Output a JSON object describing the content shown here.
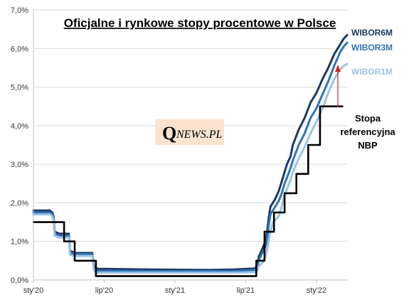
{
  "chart_data": {
    "type": "line",
    "title": "Oficjalne i rynkowe stopy procentowe w Polsce",
    "ylim": [
      0,
      7
    ],
    "y_ticks": [
      "0,0%",
      "1,0%",
      "2,0%",
      "3,0%",
      "4,0%",
      "5,0%",
      "6,0%",
      "7,0%"
    ],
    "y_tick_values": [
      0,
      1,
      2,
      3,
      4,
      5,
      6,
      7
    ],
    "xlim": [
      0,
      26.6
    ],
    "x_ticks": [
      {
        "label": "sty'20",
        "x": 0
      },
      {
        "label": "lip'20",
        "x": 6
      },
      {
        "label": "sty'21",
        "x": 12
      },
      {
        "label": "lip'21",
        "x": 18
      },
      {
        "label": "sty'22",
        "x": 24
      }
    ],
    "grid": "horizontal",
    "annotation": {
      "stopa_lines": [
        "Stopa",
        "referencyjna",
        "NBP"
      ],
      "arrow_color": "#e02020"
    },
    "watermark": {
      "q": "Q",
      "text": "NEWS.PL",
      "bg": "#fbe3d0"
    },
    "series": [
      {
        "name": "WIBOR6M",
        "color": "#203864",
        "x": [
          0,
          1.4,
          1.6,
          1.7,
          1.8,
          2.2,
          2.3,
          3.0,
          3.1,
          3.4,
          3.5,
          3.8,
          4.0,
          5.0,
          5.1,
          5.2,
          5.3,
          5.4,
          5.5,
          10.0,
          15.0,
          17.0,
          18.8,
          19.0,
          19.1,
          19.4,
          19.6,
          19.8,
          19.95,
          20.1,
          20.3,
          20.5,
          20.8,
          21.0,
          21.3,
          21.5,
          21.8,
          22.0,
          22.5,
          23.0,
          23.5,
          24.0,
          24.5,
          25.0,
          25.5,
          26.0,
          26.3,
          26.6
        ],
        "values": [
          1.8,
          1.8,
          1.75,
          1.65,
          1.25,
          1.2,
          1.2,
          1.2,
          0.75,
          0.72,
          0.7,
          0.7,
          0.7,
          0.7,
          0.4,
          0.32,
          0.3,
          0.3,
          0.29,
          0.27,
          0.26,
          0.27,
          0.3,
          0.4,
          0.6,
          0.8,
          0.95,
          1.2,
          1.6,
          1.9,
          2.0,
          2.1,
          2.3,
          2.5,
          2.8,
          3.0,
          3.2,
          3.5,
          3.9,
          4.2,
          4.6,
          4.85,
          5.2,
          5.5,
          5.85,
          6.1,
          6.25,
          6.35
        ]
      },
      {
        "name": "WIBOR3M",
        "color": "#2e75b6",
        "x": [
          0,
          1.4,
          1.6,
          1.7,
          1.8,
          2.2,
          2.3,
          3.0,
          3.1,
          3.4,
          3.5,
          3.8,
          4.0,
          5.0,
          5.1,
          5.2,
          5.3,
          5.4,
          5.5,
          10.0,
          15.0,
          17.0,
          18.8,
          19.0,
          19.1,
          19.4,
          19.6,
          19.8,
          19.95,
          20.1,
          20.3,
          20.5,
          20.8,
          21.0,
          21.3,
          21.5,
          21.8,
          22.0,
          22.5,
          23.0,
          23.5,
          24.0,
          24.5,
          25.0,
          25.5,
          26.0,
          26.3,
          26.6
        ],
        "values": [
          1.75,
          1.75,
          1.7,
          1.6,
          1.2,
          1.15,
          1.15,
          1.15,
          0.7,
          0.68,
          0.67,
          0.67,
          0.67,
          0.67,
          0.35,
          0.28,
          0.26,
          0.25,
          0.24,
          0.23,
          0.23,
          0.23,
          0.26,
          0.35,
          0.5,
          0.7,
          0.8,
          1.0,
          1.4,
          1.7,
          1.8,
          1.9,
          2.05,
          2.2,
          2.5,
          2.65,
          2.9,
          3.1,
          3.5,
          3.8,
          4.2,
          4.45,
          4.8,
          5.15,
          5.55,
          5.9,
          6.05,
          6.15
        ]
      },
      {
        "name": "WIBOR1M",
        "color": "#9dc3e6",
        "x": [
          0,
          1.4,
          1.6,
          1.7,
          1.8,
          2.2,
          2.3,
          3.0,
          3.1,
          3.4,
          3.5,
          3.8,
          4.0,
          5.0,
          5.1,
          5.2,
          5.3,
          5.4,
          5.5,
          10.0,
          15.0,
          17.0,
          18.8,
          19.0,
          19.1,
          19.4,
          19.6,
          19.8,
          19.95,
          20.1,
          20.3,
          20.5,
          20.8,
          21.0,
          21.3,
          21.5,
          21.8,
          22.0,
          22.5,
          23.0,
          23.5,
          24.0,
          24.5,
          25.0,
          25.5,
          26.0,
          26.3,
          26.6
        ],
        "values": [
          1.7,
          1.7,
          1.65,
          1.55,
          1.15,
          1.1,
          1.1,
          1.1,
          0.65,
          0.63,
          0.62,
          0.62,
          0.62,
          0.62,
          0.3,
          0.22,
          0.2,
          0.19,
          0.19,
          0.19,
          0.19,
          0.19,
          0.2,
          0.25,
          0.35,
          0.45,
          0.55,
          0.75,
          1.0,
          1.25,
          1.5,
          1.55,
          1.65,
          1.85,
          2.2,
          2.35,
          2.6,
          2.8,
          3.15,
          3.45,
          3.8,
          4.1,
          4.45,
          4.85,
          5.2,
          5.45,
          5.55,
          5.6
        ]
      },
      {
        "name": "Stopa referencyjna NBP",
        "color": "#000000",
        "step": true,
        "x": [
          0,
          2.6,
          3.5,
          5.3,
          18.9,
          19.6,
          20.4,
          21.3,
          22.3,
          23.3,
          24.3,
          25.3,
          26.2
        ],
        "values": [
          1.5,
          1.0,
          0.5,
          0.1,
          0.5,
          1.25,
          1.75,
          2.25,
          2.75,
          3.5,
          4.5,
          4.5,
          4.5
        ]
      }
    ]
  }
}
